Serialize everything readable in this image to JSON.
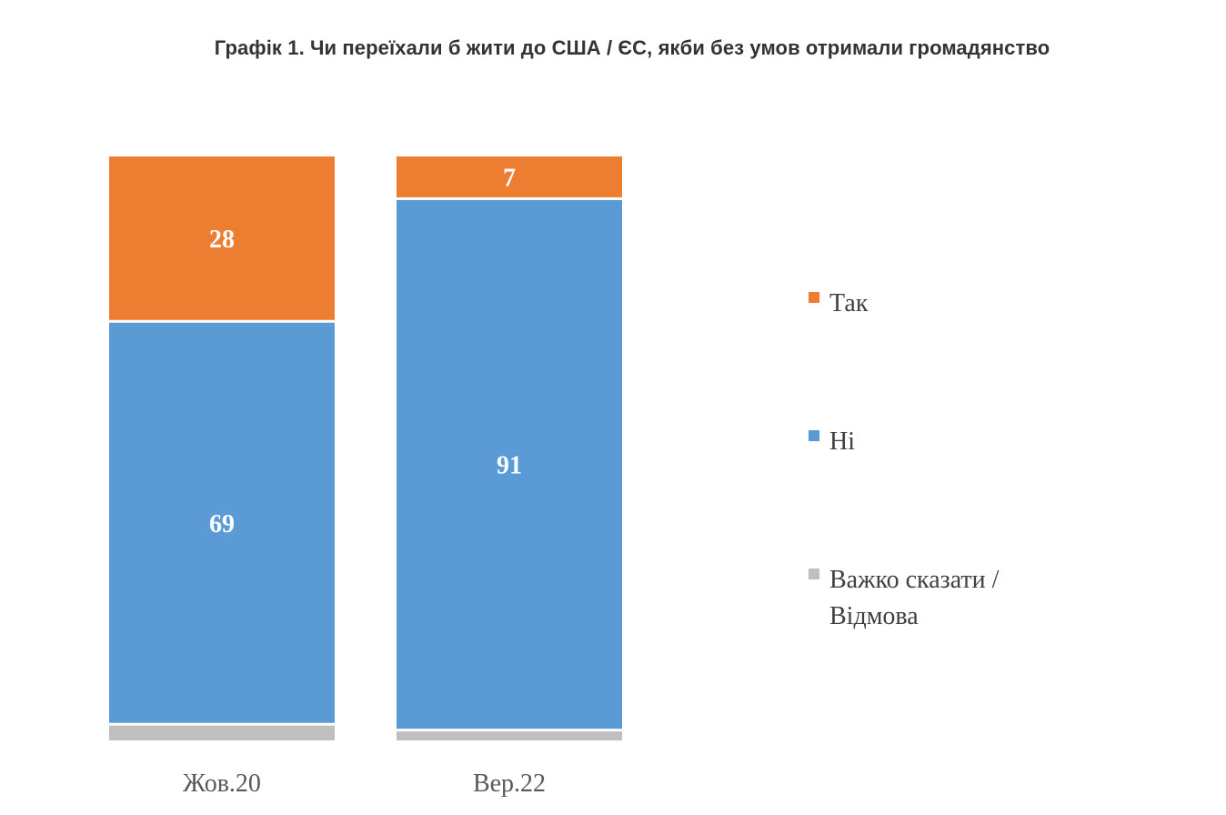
{
  "chart_data": {
    "type": "bar",
    "stacked": true,
    "normalized_percent": true,
    "title": "Графік 1. Чи переїхали б жити до США / ЄС, якби без умов отримали громадянство",
    "categories": [
      "Жов.20",
      "Вер.22"
    ],
    "series": [
      {
        "name": "Так",
        "values": [
          28,
          7
        ],
        "color": "#ED7D31",
        "show_labels": true
      },
      {
        "name": "Ні",
        "values": [
          69,
          91
        ],
        "color": "#5B9BD5",
        "show_labels": true
      },
      {
        "name": "Важко сказати / Відмова",
        "values": [
          3,
          2
        ],
        "color": "#BFBFBF",
        "show_labels": false
      }
    ],
    "legend_lines": {
      "0": [
        "Так"
      ],
      "1": [
        "Ні"
      ],
      "2": [
        "Важко сказати /",
        "Відмова"
      ]
    },
    "legend_position": "right",
    "ylim": [
      0,
      100
    ],
    "grid": false,
    "axes_visible": false
  }
}
